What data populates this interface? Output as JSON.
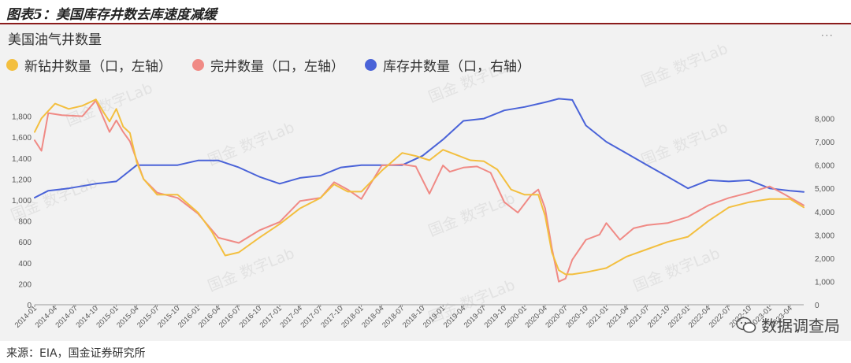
{
  "figure_title": "图表5：美国库存井数去库速度减缓",
  "source": "来源：EIA，国金证券研究所",
  "watermark": "国金 数字Lab",
  "wechat_label": "数据调查局",
  "chart_data": {
    "type": "line",
    "title": "美国油气井数量",
    "xlabel": "",
    "ylabel_left": "",
    "ylabel_right": "",
    "ylim_left": [
      0,
      2000
    ],
    "ylim_right": [
      0,
      9000
    ],
    "y_ticks_left": [
      "0",
      "200",
      "400",
      "600",
      "800",
      "1,000",
      "1,200",
      "1,400",
      "1,600",
      "1,800"
    ],
    "y_ticks_right": [
      "0",
      "1,000",
      "2,000",
      "3,000",
      "4,000",
      "5,000",
      "6,000",
      "7,000",
      "8,000"
    ],
    "x_ticks": [
      "2014-01",
      "2014-04",
      "2014-07",
      "2014-10",
      "2015-01",
      "2015-04",
      "2015-07",
      "2015-10",
      "2016-01",
      "2016-04",
      "2016-07",
      "2016-10",
      "2017-01",
      "2017-04",
      "2017-07",
      "2017-10",
      "2018-01",
      "2018-04",
      "2018-07",
      "2018-10",
      "2019-01",
      "2019-04",
      "2019-07",
      "2019-10",
      "2020-01",
      "2020-04",
      "2020-07",
      "2020-10",
      "2021-01",
      "2021-04",
      "2021-07",
      "2021-10",
      "2022-01",
      "2022-04",
      "2022-07",
      "2022-10",
      "2023-01",
      "2023-04"
    ],
    "legend_position": "top-left",
    "series": [
      {
        "name": "新钻井数量（口，左轴）",
        "axis": "left",
        "color": "#f3bf3f",
        "x": [
          "2014-01",
          "2014-02",
          "2014-04",
          "2014-06",
          "2014-08",
          "2014-10",
          "2014-11",
          "2014-12",
          "2015-01",
          "2015-02",
          "2015-03",
          "2015-04",
          "2015-05",
          "2015-07",
          "2015-10",
          "2016-01",
          "2016-03",
          "2016-05",
          "2016-07",
          "2016-10",
          "2017-01",
          "2017-04",
          "2017-07",
          "2017-09",
          "2017-11",
          "2018-01",
          "2018-04",
          "2018-07",
          "2018-09",
          "2018-11",
          "2019-01",
          "2019-03",
          "2019-05",
          "2019-07",
          "2019-09",
          "2019-11",
          "2020-01",
          "2020-03",
          "2020-04",
          "2020-05",
          "2020-06",
          "2020-07",
          "2020-08",
          "2020-10",
          "2021-01",
          "2021-04",
          "2021-07",
          "2021-10",
          "2022-01",
          "2022-04",
          "2022-07",
          "2022-10",
          "2023-01",
          "2023-04",
          "2023-06"
        ],
        "values": [
          1650,
          1780,
          1920,
          1870,
          1900,
          1960,
          1850,
          1750,
          1870,
          1700,
          1640,
          1360,
          1200,
          1050,
          1050,
          880,
          700,
          470,
          500,
          640,
          770,
          920,
          1020,
          1150,
          1080,
          1080,
          1280,
          1450,
          1420,
          1380,
          1480,
          1430,
          1380,
          1370,
          1290,
          1100,
          1050,
          1050,
          850,
          500,
          330,
          290,
          290,
          310,
          350,
          460,
          530,
          600,
          650,
          800,
          930,
          980,
          1010,
          1010,
          930
        ]
      },
      {
        "name": "完井数量（口，左轴）",
        "axis": "left",
        "color": "#f08a85",
        "x": [
          "2014-01",
          "2014-02",
          "2014-03",
          "2014-05",
          "2014-08",
          "2014-10",
          "2014-12",
          "2015-01",
          "2015-02",
          "2015-03",
          "2015-05",
          "2015-07",
          "2015-10",
          "2016-01",
          "2016-04",
          "2016-07",
          "2016-10",
          "2017-01",
          "2017-04",
          "2017-07",
          "2017-09",
          "2017-11",
          "2018-01",
          "2018-04",
          "2018-07",
          "2018-09",
          "2018-11",
          "2019-01",
          "2019-02",
          "2019-04",
          "2019-06",
          "2019-08",
          "2019-10",
          "2019-12",
          "2020-02",
          "2020-03",
          "2020-04",
          "2020-05",
          "2020-06",
          "2020-07",
          "2020-08",
          "2020-10",
          "2020-12",
          "2021-01",
          "2021-03",
          "2021-05",
          "2021-07",
          "2021-10",
          "2022-01",
          "2022-04",
          "2022-07",
          "2022-10",
          "2023-01",
          "2023-03",
          "2023-06"
        ],
        "values": [
          1570,
          1470,
          1830,
          1810,
          1800,
          1950,
          1650,
          1760,
          1650,
          1560,
          1200,
          1070,
          1020,
          870,
          640,
          590,
          710,
          790,
          990,
          1020,
          1170,
          1100,
          1010,
          1330,
          1340,
          1320,
          1060,
          1330,
          1270,
          1310,
          1320,
          1260,
          980,
          880,
          1050,
          1100,
          920,
          540,
          220,
          250,
          430,
          620,
          670,
          780,
          620,
          730,
          760,
          780,
          840,
          950,
          1020,
          1070,
          1130,
          1060,
          950
        ]
      },
      {
        "name": "库存井数量（口，右轴）",
        "axis": "right",
        "color": "#4a63d8",
        "x": [
          "2014-01",
          "2014-03",
          "2014-06",
          "2014-10",
          "2015-01",
          "2015-04",
          "2015-07",
          "2015-10",
          "2016-01",
          "2016-04",
          "2016-07",
          "2016-10",
          "2017-01",
          "2017-04",
          "2017-07",
          "2017-10",
          "2018-01",
          "2018-04",
          "2018-07",
          "2018-10",
          "2019-01",
          "2019-04",
          "2019-07",
          "2019-10",
          "2020-01",
          "2020-04",
          "2020-06",
          "2020-08",
          "2020-10",
          "2021-01",
          "2021-04",
          "2021-07",
          "2021-10",
          "2022-01",
          "2022-04",
          "2022-07",
          "2022-10",
          "2023-01",
          "2023-04",
          "2023-06"
        ],
        "values": [
          4600,
          4900,
          5000,
          5200,
          5300,
          6000,
          6000,
          6000,
          6200,
          6200,
          5900,
          5500,
          5200,
          5450,
          5550,
          5900,
          6000,
          6000,
          6000,
          6400,
          7100,
          7900,
          8000,
          8350,
          8500,
          8700,
          8850,
          8800,
          7700,
          7000,
          6500,
          6000,
          5500,
          5000,
          5350,
          5300,
          5350,
          5000,
          4900,
          4850
        ]
      }
    ]
  }
}
